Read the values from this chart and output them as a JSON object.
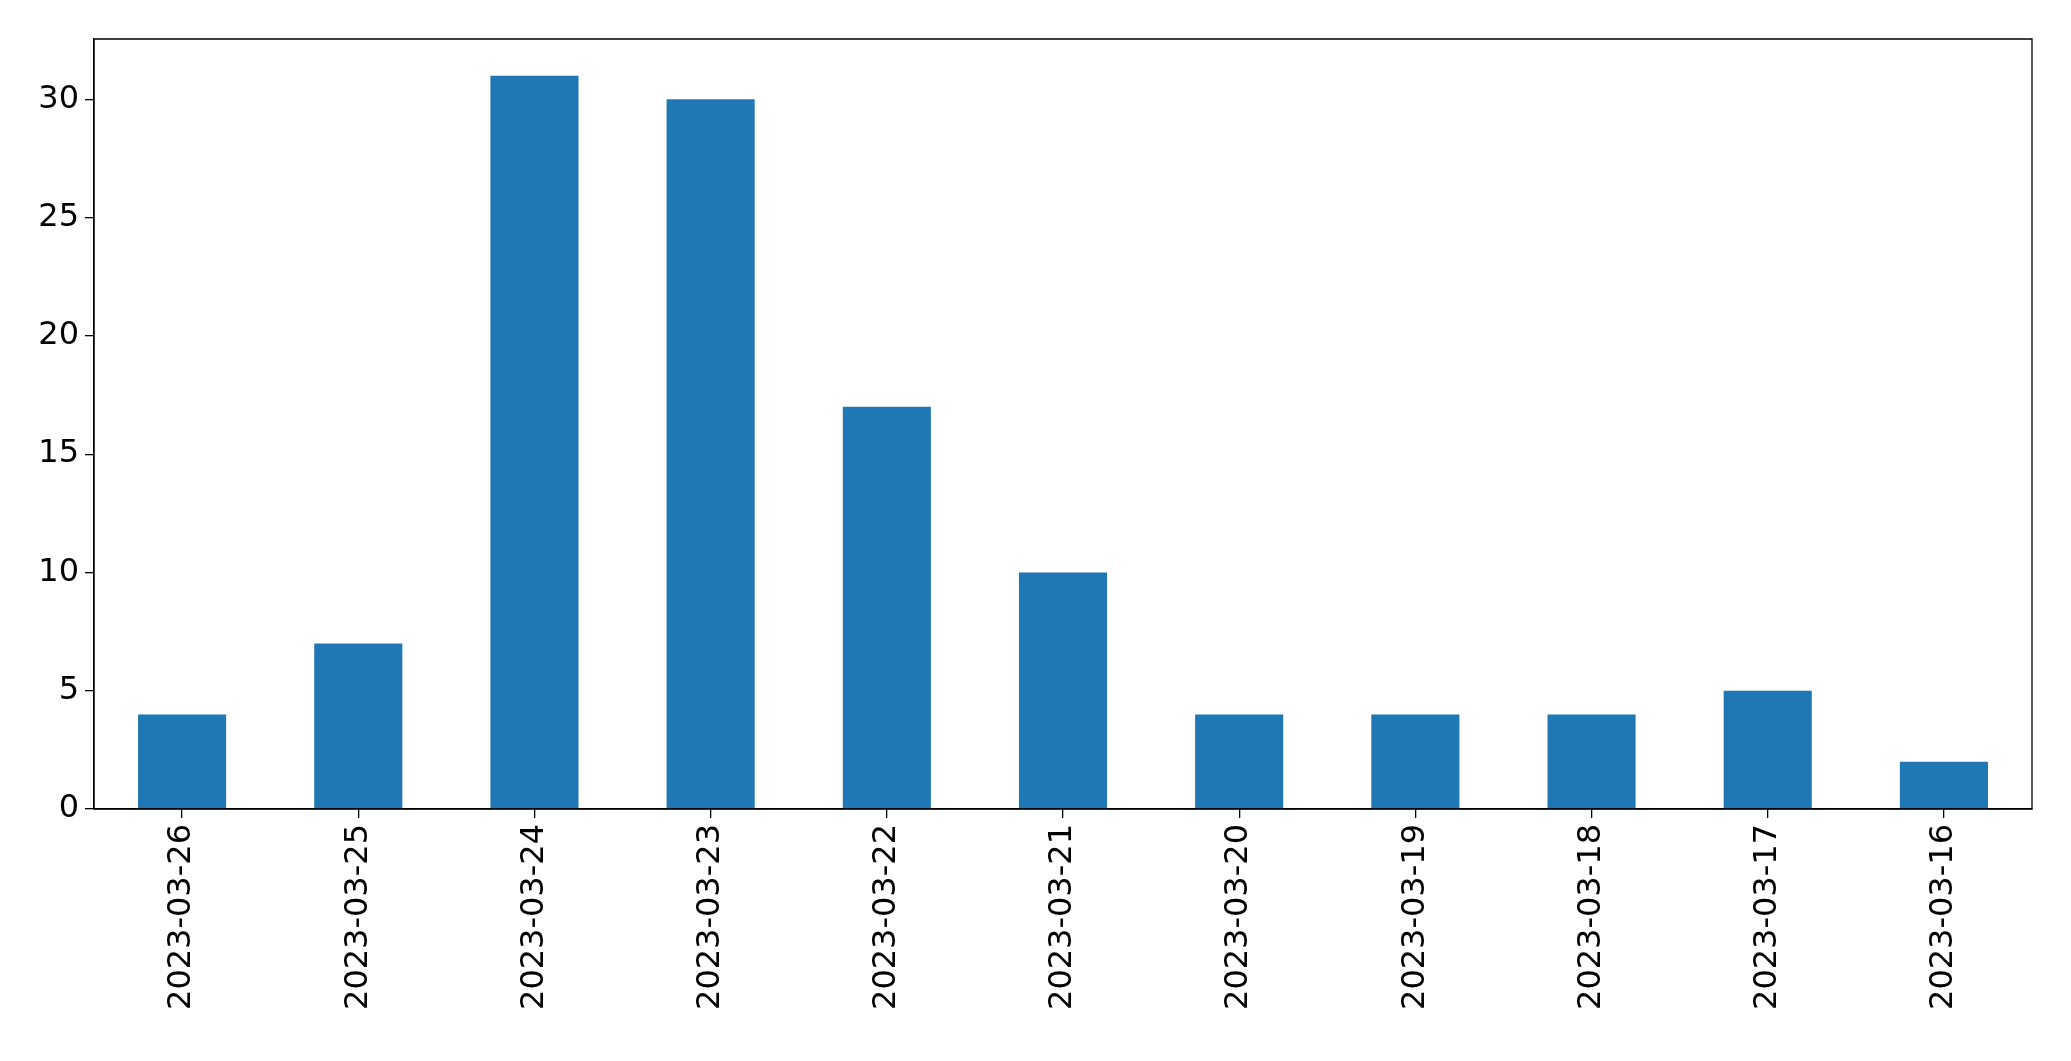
{
  "chart_data": {
    "type": "bar",
    "categories": [
      "2023-03-26",
      "2023-03-25",
      "2023-03-24",
      "2023-03-23",
      "2023-03-22",
      "2023-03-21",
      "2023-03-20",
      "2023-03-19",
      "2023-03-18",
      "2023-03-17",
      "2023-03-16"
    ],
    "values": [
      4,
      7,
      31,
      30,
      17,
      10,
      4,
      4,
      4,
      5,
      2
    ],
    "color": "#1f77b4",
    "ylim": [
      0,
      32.55
    ],
    "yticks": [
      0,
      5,
      10,
      15,
      20,
      25,
      30
    ],
    "grid": false
  }
}
